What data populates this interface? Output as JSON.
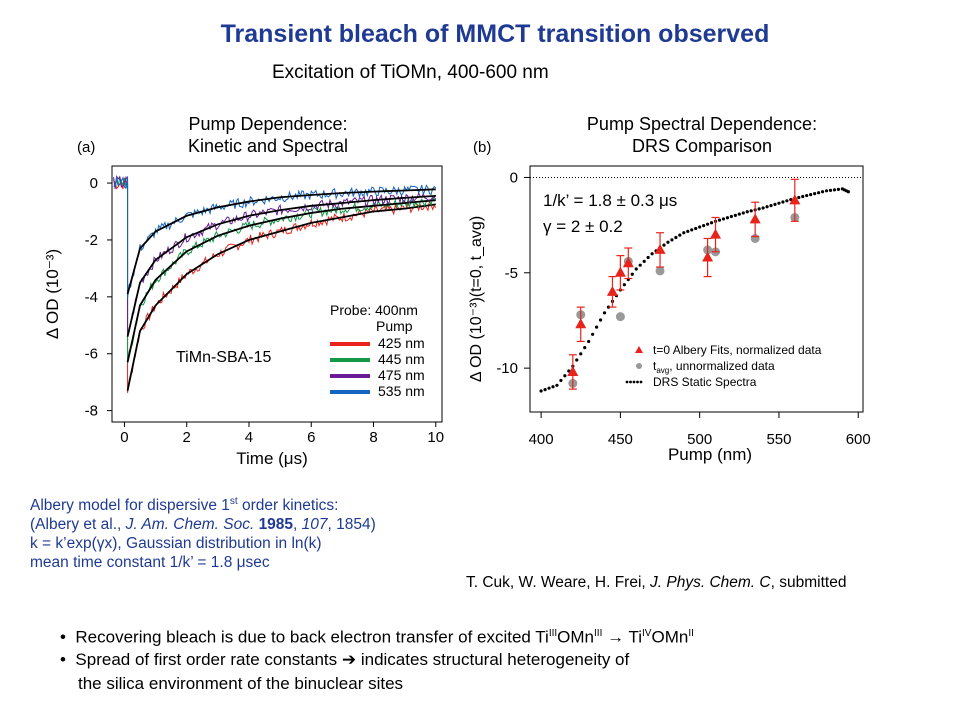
{
  "header": {
    "title": "Transient bleach of MMCT transition observed",
    "subtitle": "Excitation of TiOMn, 400-600 nm"
  },
  "chart_data": [
    {
      "type": "line",
      "panel_label": "(a)",
      "title_lines": [
        "Pump Dependence:",
        "Kinetic and Spectral"
      ],
      "xlabel": "Time (μs)",
      "ylabel": "Δ OD (10⁻³)",
      "xlim": [
        -0.4,
        10.2
      ],
      "ylim": [
        -8.4,
        0.6
      ],
      "xticks": [
        0,
        2,
        4,
        6,
        8,
        10
      ],
      "yticks": [
        0,
        -2,
        -4,
        -6,
        -8
      ],
      "sample_label": "TiMn-SBA-15",
      "legend_title_lines": [
        "Probe: 400nm",
        "Pump"
      ],
      "legend_placement": "bottom-right",
      "series": [
        {
          "name": "425 nm",
          "color": "#e8231b",
          "x": [
            0.1,
            0.5,
            1,
            2,
            3,
            4,
            5,
            6,
            7,
            8,
            9,
            10
          ],
          "values": [
            -7.3,
            -5.2,
            -4.3,
            -3.2,
            -2.5,
            -2.0,
            -1.7,
            -1.4,
            -1.2,
            -1.0,
            -0.9,
            -0.75
          ]
        },
        {
          "name": "445 nm",
          "color": "#129a48",
          "x": [
            0.1,
            0.5,
            1,
            2,
            3,
            4,
            5,
            6,
            7,
            8,
            9,
            10
          ],
          "values": [
            -6.3,
            -4.3,
            -3.4,
            -2.4,
            -1.85,
            -1.5,
            -1.25,
            -1.05,
            -0.9,
            -0.8,
            -0.7,
            -0.6
          ]
        },
        {
          "name": "475 nm",
          "color": "#6a1b9a",
          "x": [
            0.1,
            0.5,
            1,
            2,
            3,
            4,
            5,
            6,
            7,
            8,
            9,
            10
          ],
          "values": [
            -5.4,
            -3.5,
            -2.7,
            -1.9,
            -1.45,
            -1.15,
            -0.95,
            -0.8,
            -0.7,
            -0.6,
            -0.52,
            -0.45
          ]
        },
        {
          "name": "535 nm",
          "color": "#1565c0",
          "x": [
            0.1,
            0.5,
            1,
            2,
            3,
            4,
            5,
            6,
            7,
            8,
            9,
            10
          ],
          "values": [
            -3.9,
            -2.3,
            -1.7,
            -1.15,
            -0.85,
            -0.65,
            -0.5,
            -0.42,
            -0.35,
            -0.3,
            -0.26,
            -0.22
          ]
        }
      ]
    },
    {
      "type": "scatter",
      "panel_label": "(b)",
      "title_lines": [
        "Pump Spectral Dependence:",
        "DRS Comparison"
      ],
      "xlabel": "Pump (nm)",
      "ylabel": "Δ OD (10⁻³)(t=0, t_avg)",
      "xlim": [
        393,
        603
      ],
      "ylim": [
        -12.3,
        0.6
      ],
      "xticks": [
        400,
        450,
        500,
        550,
        600
      ],
      "yticks": [
        0,
        -5,
        -10
      ],
      "annotation_lines": [
        "1/k’ = 1.8 ± 0.3 μs",
        "γ = 2 ± 0.2"
      ],
      "legend_placement": "bottom-right",
      "legend": [
        {
          "marker": "red-triangle",
          "label": "t=0 Albery Fits, normalized data"
        },
        {
          "marker": "gray-circle",
          "label_main": "t",
          "label_sub": "avg",
          "label_rest": ", unnormalized data"
        },
        {
          "marker": "black-dots",
          "label": "DRS Static Spectra"
        }
      ],
      "series": [
        {
          "name": "t=0 Albery Fits, normalized data",
          "color": "#e8231b",
          "x": [
            420,
            425,
            445,
            450,
            455,
            475,
            505,
            510,
            535,
            560
          ],
          "values": [
            -10.2,
            -7.7,
            -6.0,
            -5.0,
            -4.5,
            -3.8,
            -4.2,
            -3.0,
            -2.2,
            -1.2
          ],
          "error": [
            0.9,
            0.9,
            0.8,
            0.9,
            0.8,
            0.9,
            1.0,
            0.9,
            0.9,
            1.1
          ]
        },
        {
          "name": "t_avg, unnormalized data",
          "color": "#999999",
          "x": [
            420,
            425,
            450,
            455,
            475,
            505,
            510,
            535,
            560
          ],
          "values": [
            -10.8,
            -7.2,
            -7.3,
            -4.4,
            -4.9,
            -3.8,
            -3.9,
            -3.2,
            -2.1
          ]
        },
        {
          "name": "DRS Static Spectra",
          "color": "#000000",
          "x": [
            400,
            410,
            420,
            430,
            440,
            450,
            460,
            470,
            480,
            490,
            500,
            510,
            520,
            530,
            540,
            550,
            560,
            570,
            580,
            590,
            595
          ],
          "values": [
            -11.2,
            -10.9,
            -9.9,
            -8.6,
            -7.1,
            -5.9,
            -4.8,
            -4.0,
            -3.4,
            -2.9,
            -2.6,
            -2.3,
            -2.05,
            -1.8,
            -1.6,
            -1.35,
            -1.1,
            -0.9,
            -0.7,
            -0.6,
            -0.8
          ]
        }
      ]
    }
  ],
  "notes": {
    "albery_line1_pre": "Albery model for dispersive 1",
    "albery_line1_sup": "st",
    "albery_line1_post": " order kinetics:",
    "albery_line2_a": "(Albery et al., ",
    "albery_line2_journal": "J. Am. Chem. Soc.",
    "albery_line2_year": "1985",
    "albery_line2_vol": "107",
    "albery_line2_end": ", 1854)",
    "albery_line3": "k = k’exp(γx), Gaussian distribution in ln(k)",
    "albery_line4": "mean time constant 1/k’ = 1.8 μsec",
    "citation_authors": "T. Cuk, W. Weare, H. Frei, ",
    "citation_journal": "J. Phys. Chem. C",
    "citation_end": ", submitted"
  },
  "bullets": {
    "b1_pre": "Recovering bleach is due to back electron transfer of excited Ti",
    "b1_sup1": "III",
    "b1_mid": "OMn",
    "b1_sup2": "III",
    "b1_arrow": " → Ti",
    "b1_sup3": "IV",
    "b1_mid2": "OMn",
    "b1_sup4": "II",
    "b2_pre": "Spread of first order rate constants ",
    "b2_arrow": "➔",
    "b2_post": "  indicates structural heterogeneity of",
    "b3": "the silica environment of the binuclear sites",
    "marker": "•"
  }
}
